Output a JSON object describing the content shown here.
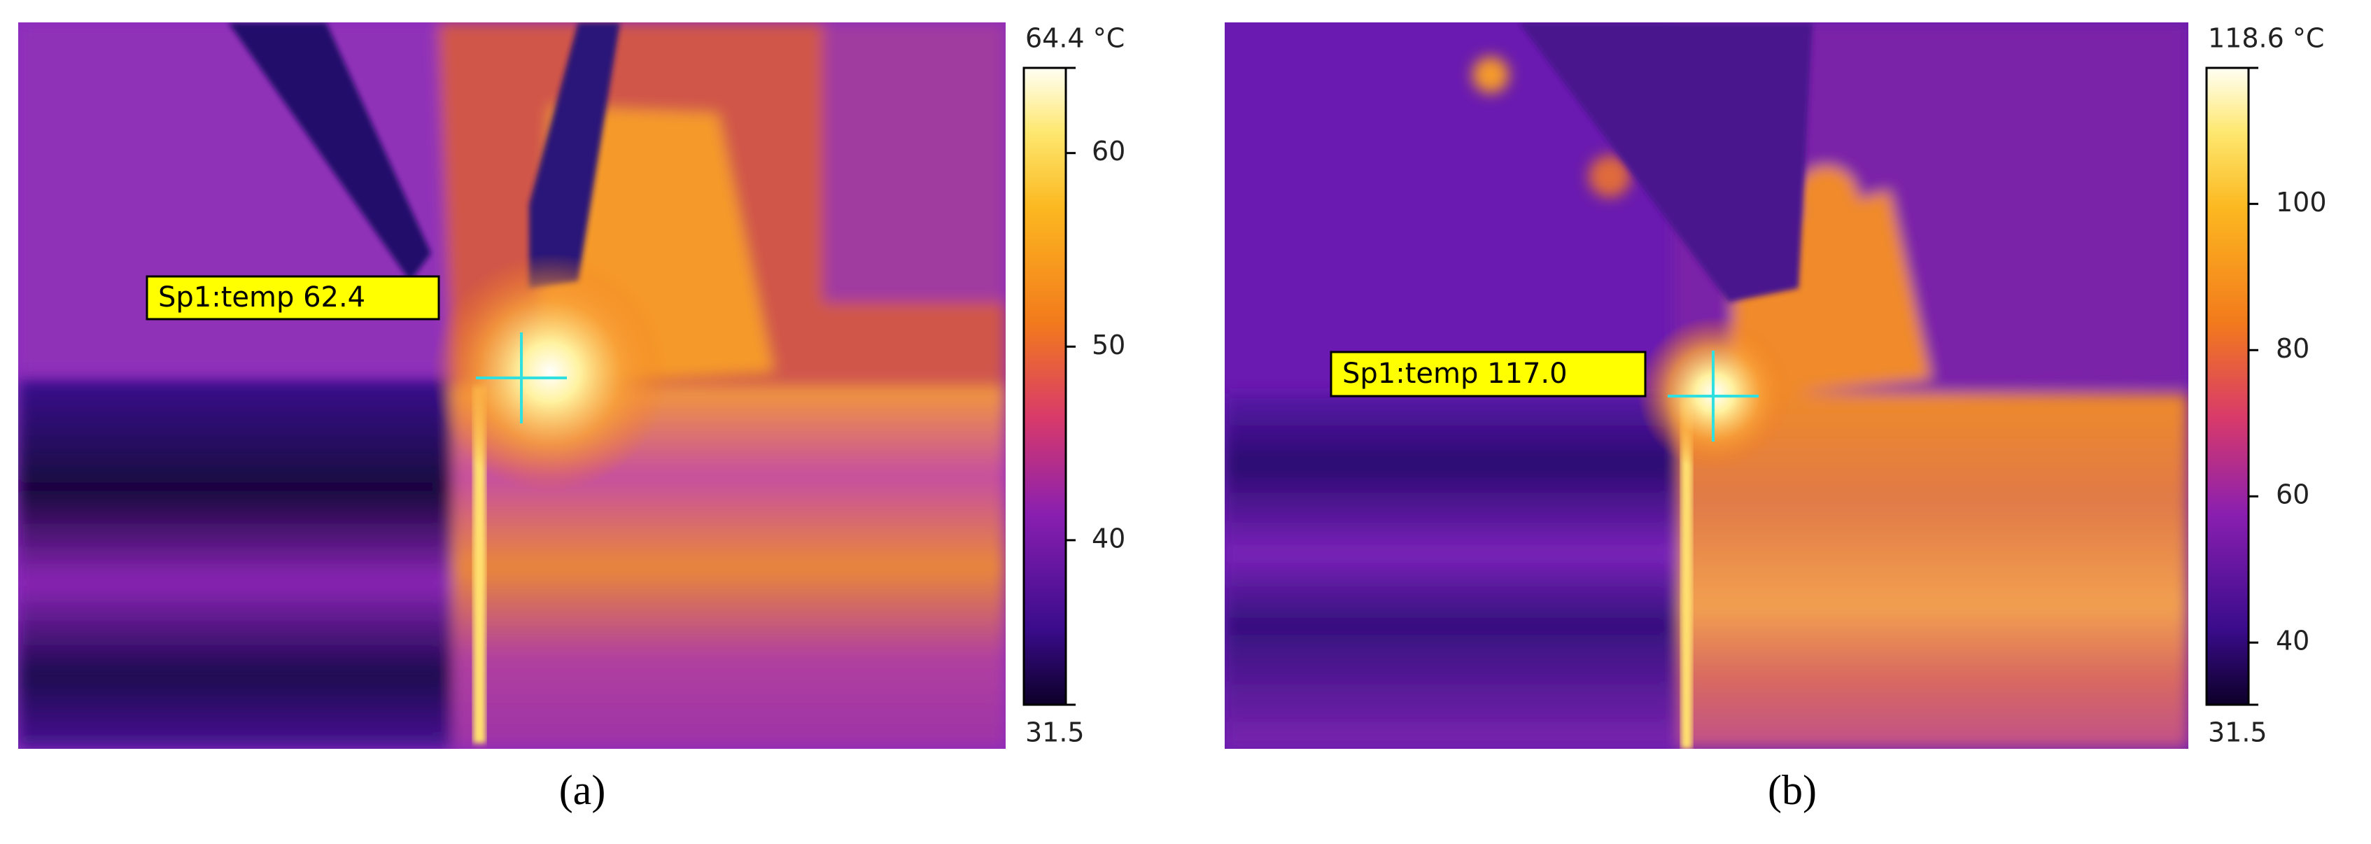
{
  "panels": [
    {
      "caption": "(a)",
      "spot_label": "Sp1:temp 62.4",
      "colorbar": {
        "min": 31.5,
        "max": {
          "value": 64.4,
          "label": "64.4 °C"
        },
        "ticks": [
          40,
          50,
          60
        ]
      }
    },
    {
      "caption": "(b)",
      "spot_label": "Sp1:temp 117.0",
      "colorbar": {
        "min": 31.5,
        "max": {
          "value": 118.6,
          "label": "118.6 °C"
        },
        "ticks": [
          40,
          60,
          80,
          100
        ]
      }
    }
  ]
}
